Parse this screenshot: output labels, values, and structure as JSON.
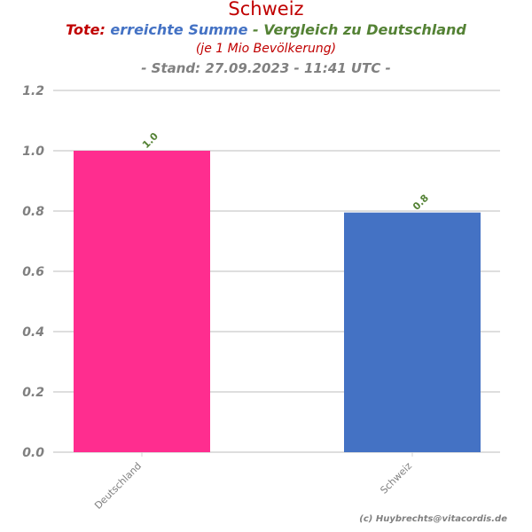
{
  "title": "Schweiz",
  "subtitle": {
    "part1": "Tote:",
    "part2": " erreichte Summe",
    "part3": " - Vergleich zu Deutschland"
  },
  "subtitle2": "(je 1 Mio Bevölkerung)",
  "stand": "- Stand: 27.09.2023 - 11:41 UTC -",
  "credit": "(c) Huybrechts@vitacordis.de",
  "colors": {
    "deutschland": "#ff2d8f",
    "schweiz": "#4472c4",
    "data_label": "#548235",
    "axis_text": "#808080",
    "grid": "#d3d3d3"
  },
  "chart_data": {
    "type": "bar",
    "categories": [
      "Deutschland",
      "Schweiz"
    ],
    "values": [
      1.0,
      0.795
    ],
    "data_labels": [
      "1.0",
      "0.8"
    ],
    "ylim": [
      0,
      1.2
    ],
    "yticks": [
      "0.0",
      "0.2",
      "0.4",
      "0.6",
      "0.8",
      "1.0",
      "1.2"
    ],
    "grid": true,
    "xlabel": "",
    "ylabel": ""
  }
}
